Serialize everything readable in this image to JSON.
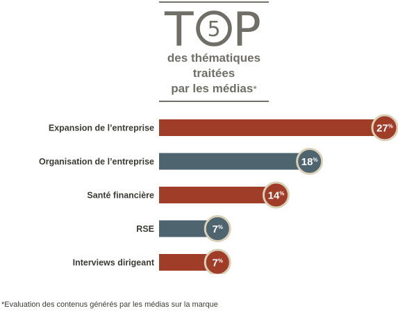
{
  "header": {
    "title_part1": "T",
    "title_digit": "5",
    "title_part2": "P",
    "subtitle_line1": "des thématiques",
    "subtitle_line2": "traitées",
    "subtitle_line3": "par les médias",
    "subtitle_asterisk": "*"
  },
  "colors": {
    "rust": "#a03d28",
    "slate": "#4e6570",
    "badge_ring": "#d9d0b8",
    "title_gray": "#6f6f68"
  },
  "chart_data": {
    "type": "bar",
    "orientation": "horizontal",
    "categories": [
      "Expansion de l’entreprise",
      "Organisation de l’entreprise",
      "Santé financière",
      "RSE",
      "Interviews dirigeant"
    ],
    "values": [
      27,
      18,
      14,
      7,
      7
    ],
    "value_labels": [
      "27",
      "18",
      "14",
      "7",
      "7"
    ],
    "value_suffix": "%",
    "bar_colors": [
      "rust",
      "slate",
      "rust",
      "slate",
      "rust"
    ],
    "xlim": [
      0,
      27
    ]
  },
  "footnote": "*Evaluation des contenus générés par les médias sur la marque"
}
